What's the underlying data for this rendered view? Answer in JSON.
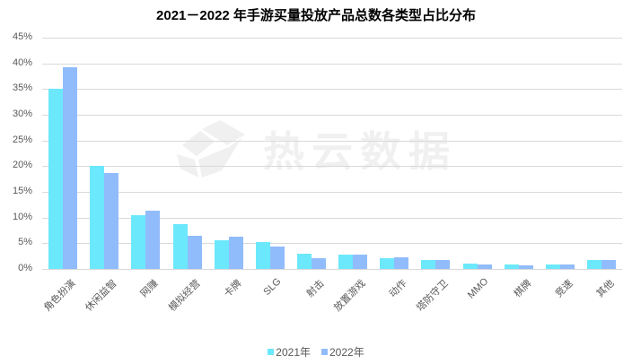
{
  "chart_data": {
    "type": "bar",
    "title": "2021－2022 年手游买量投放产品总数各类型占比分布",
    "xlabel": "",
    "ylabel": "",
    "ylim": [
      0,
      45
    ],
    "yticks": [
      "0%",
      "5%",
      "10%",
      "15%",
      "20%",
      "25%",
      "30%",
      "35%",
      "40%",
      "45%"
    ],
    "grid": true,
    "legend_position": "bottom",
    "categories": [
      "角色扮演",
      "休闲益智",
      "网赚",
      "模拟经营",
      "卡牌",
      "SLG",
      "射击",
      "放置游戏",
      "动作",
      "塔防守卫",
      "MMO",
      "棋牌",
      "竞速",
      "其他"
    ],
    "series": [
      {
        "name": "2021年",
        "color": "#6ce8fc",
        "values": [
          35.1,
          20.0,
          10.5,
          8.8,
          5.6,
          5.3,
          3.0,
          2.8,
          2.1,
          1.8,
          1.1,
          0.9,
          0.9,
          1.8
        ]
      },
      {
        "name": "2022年",
        "color": "#91bcfb",
        "values": [
          39.2,
          18.7,
          11.4,
          6.5,
          6.2,
          4.4,
          2.1,
          2.8,
          2.3,
          1.8,
          0.9,
          0.7,
          0.9,
          1.8
        ]
      }
    ],
    "watermark": "热云数据"
  }
}
